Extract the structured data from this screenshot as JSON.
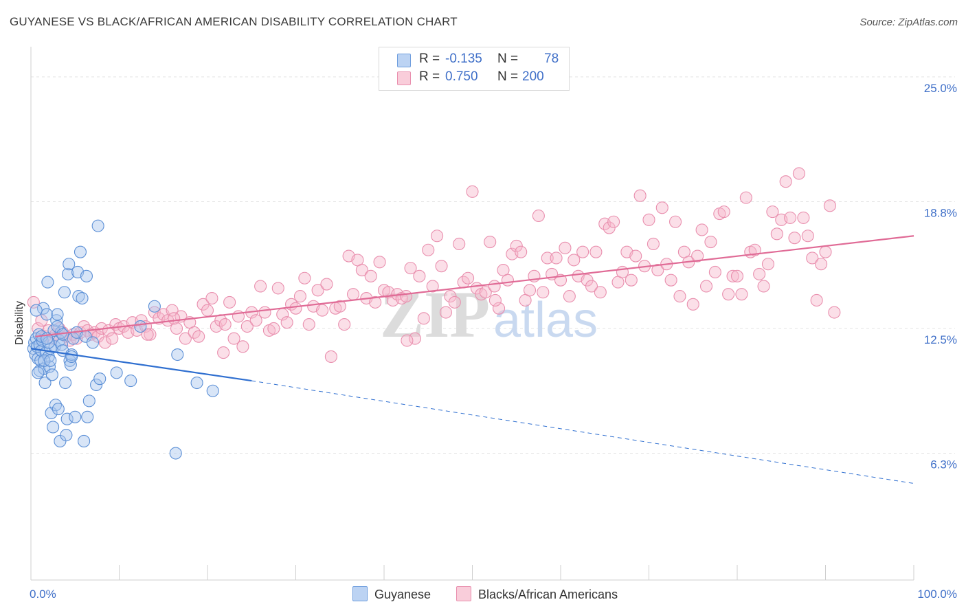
{
  "title": "GUYANESE VS BLACK/AFRICAN AMERICAN DISABILITY CORRELATION CHART",
  "source": "Source: ZipAtlas.com",
  "watermark": {
    "zip": "ZIP",
    "atlas": "atlas"
  },
  "legend_top": [
    {
      "r_label": "R =",
      "r_value": "-0.135",
      "n_label": "N =",
      "n_value": "78",
      "color": "#a9c6ee"
    },
    {
      "r_label": "R =",
      "r_value": "0.750",
      "n_label": "N =",
      "n_value": "200",
      "color": "#f6b8cb"
    }
  ],
  "legend_bottom": [
    {
      "label": "Guyanese",
      "color": "#a9c6ee"
    },
    {
      "label": "Blacks/African Americans",
      "color": "#f6b8cb"
    }
  ],
  "chart_data": {
    "type": "scatter",
    "title": "GUYANESE VS BLACK/AFRICAN AMERICAN DISABILITY CORRELATION CHART",
    "xlabel": "",
    "ylabel": "Disability",
    "xlim": [
      0,
      100
    ],
    "ylim": [
      0,
      26.5
    ],
    "y_ticks": [
      {
        "value": 6.3,
        "label": "6.3%"
      },
      {
        "value": 12.5,
        "label": "12.5%"
      },
      {
        "value": 18.8,
        "label": "18.8%"
      },
      {
        "value": 25.0,
        "label": "25.0%"
      }
    ],
    "x_tick_labels": [
      {
        "value": 0,
        "label": "0.0%"
      },
      {
        "value": 100,
        "label": "100.0%"
      }
    ],
    "x_minor_ticks": [
      0,
      10,
      20,
      30,
      40,
      50,
      60,
      70,
      80,
      90,
      100
    ],
    "grid": true,
    "series": [
      {
        "name": "Guyanese",
        "stroke": "#5b8fd6",
        "fill": "#a9c6ee",
        "line_color": "#2f6fd0",
        "trend": {
          "x0": 0,
          "y0": 11.5,
          "x1": 25,
          "y1": 9.9,
          "dash_to_x": 100,
          "dash_to_y": 4.8
        },
        "points": [
          [
            0.3,
            11.5
          ],
          [
            0.4,
            11.8
          ],
          [
            0.5,
            11.2
          ],
          [
            0.6,
            12.0
          ],
          [
            0.7,
            11.6
          ],
          [
            0.8,
            11.0
          ],
          [
            0.9,
            12.2
          ],
          [
            1.0,
            11.7
          ],
          [
            1.0,
            10.4
          ],
          [
            1.1,
            10.9
          ],
          [
            1.2,
            11.4
          ],
          [
            1.3,
            11.9
          ],
          [
            1.4,
            13.5
          ],
          [
            1.5,
            10.5
          ],
          [
            1.6,
            9.8
          ],
          [
            1.7,
            11.3
          ],
          [
            1.8,
            13.2
          ],
          [
            1.9,
            14.8
          ],
          [
            2.0,
            11.1
          ],
          [
            2.1,
            10.6
          ],
          [
            2.2,
            11.5
          ],
          [
            2.3,
            8.3
          ],
          [
            2.4,
            10.2
          ],
          [
            2.5,
            7.6
          ],
          [
            2.6,
            12.4
          ],
          [
            2.7,
            11.6
          ],
          [
            2.8,
            8.7
          ],
          [
            2.9,
            12.9
          ],
          [
            3.0,
            13.2
          ],
          [
            3.1,
            8.5
          ],
          [
            3.2,
            11.9
          ],
          [
            3.3,
            6.9
          ],
          [
            3.4,
            12.3
          ],
          [
            3.5,
            11.7
          ],
          [
            3.6,
            11.4
          ],
          [
            3.8,
            14.3
          ],
          [
            3.9,
            9.8
          ],
          [
            4.0,
            7.2
          ],
          [
            4.1,
            8.0
          ],
          [
            4.2,
            15.2
          ],
          [
            4.3,
            15.7
          ],
          [
            4.4,
            10.9
          ],
          [
            4.5,
            10.7
          ],
          [
            4.6,
            11.2
          ],
          [
            4.8,
            12.0
          ],
          [
            5.0,
            8.1
          ],
          [
            5.2,
            12.3
          ],
          [
            5.3,
            15.3
          ],
          [
            5.4,
            14.1
          ],
          [
            5.6,
            16.3
          ],
          [
            5.8,
            14.0
          ],
          [
            6.0,
            6.9
          ],
          [
            6.2,
            12.1
          ],
          [
            6.3,
            15.1
          ],
          [
            6.4,
            8.1
          ],
          [
            6.6,
            8.9
          ],
          [
            7.0,
            11.8
          ],
          [
            7.4,
            9.7
          ],
          [
            7.8,
            10.0
          ],
          [
            7.6,
            17.6
          ],
          [
            9.7,
            10.3
          ],
          [
            11.3,
            9.9
          ],
          [
            12.4,
            12.6
          ],
          [
            14.0,
            13.6
          ],
          [
            16.4,
            6.3
          ],
          [
            16.6,
            11.2
          ],
          [
            18.8,
            9.8
          ],
          [
            20.6,
            9.4
          ],
          [
            1.2,
            12.1
          ],
          [
            2.0,
            11.8
          ],
          [
            3.0,
            12.6
          ],
          [
            1.5,
            10.9
          ],
          [
            0.8,
            10.3
          ],
          [
            4.6,
            11.1
          ],
          [
            2.2,
            10.9
          ],
          [
            3.6,
            12.2
          ],
          [
            1.8,
            12.0
          ],
          [
            0.6,
            13.4
          ]
        ]
      },
      {
        "name": "Blacks/African Americans",
        "stroke": "#e98fae",
        "fill": "#f6b8cb",
        "line_color": "#e06b96",
        "trend": {
          "x0": 0.5,
          "y0": 12.1,
          "x1": 100,
          "y1": 17.1
        },
        "points": [
          [
            0.3,
            13.8
          ],
          [
            0.8,
            12.5
          ],
          [
            1.2,
            12.9
          ],
          [
            1.6,
            12.1
          ],
          [
            2.0,
            12.4
          ],
          [
            2.4,
            12.0
          ],
          [
            2.8,
            12.2
          ],
          [
            3.2,
            12.5
          ],
          [
            3.6,
            12.3
          ],
          [
            4.0,
            12.1
          ],
          [
            4.4,
            11.9
          ],
          [
            4.8,
            12.2
          ],
          [
            5.2,
            12.0
          ],
          [
            5.6,
            12.3
          ],
          [
            6.0,
            12.6
          ],
          [
            6.4,
            12.4
          ],
          [
            6.8,
            12.2
          ],
          [
            7.2,
            12.3
          ],
          [
            7.6,
            12.1
          ],
          [
            8.0,
            12.5
          ],
          [
            8.4,
            11.8
          ],
          [
            8.8,
            12.4
          ],
          [
            9.2,
            12.0
          ],
          [
            9.6,
            12.7
          ],
          [
            10.0,
            12.5
          ],
          [
            10.5,
            12.6
          ],
          [
            11.0,
            12.3
          ],
          [
            11.5,
            12.8
          ],
          [
            12.0,
            12.4
          ],
          [
            12.5,
            12.9
          ],
          [
            13.0,
            12.6
          ],
          [
            13.5,
            12.2
          ],
          [
            14.0,
            13.3
          ],
          [
            14.5,
            13.0
          ],
          [
            15.0,
            13.2
          ],
          [
            15.5,
            12.9
          ],
          [
            16.0,
            13.4
          ],
          [
            16.5,
            12.5
          ],
          [
            17.0,
            13.1
          ],
          [
            17.5,
            12.0
          ],
          [
            18.0,
            12.8
          ],
          [
            18.5,
            12.3
          ],
          [
            19.0,
            12.1
          ],
          [
            19.5,
            13.7
          ],
          [
            20.0,
            13.4
          ],
          [
            20.5,
            14.0
          ],
          [
            21.0,
            12.6
          ],
          [
            21.5,
            12.9
          ],
          [
            22.0,
            12.7
          ],
          [
            22.5,
            13.8
          ],
          [
            23.0,
            12.0
          ],
          [
            23.5,
            13.1
          ],
          [
            24.0,
            11.6
          ],
          [
            24.5,
            12.6
          ],
          [
            25.0,
            13.3
          ],
          [
            25.5,
            12.9
          ],
          [
            26.0,
            14.6
          ],
          [
            26.5,
            13.3
          ],
          [
            27.0,
            12.4
          ],
          [
            27.5,
            12.5
          ],
          [
            28.0,
            14.5
          ],
          [
            28.5,
            13.2
          ],
          [
            29.0,
            12.8
          ],
          [
            29.5,
            13.7
          ],
          [
            30.0,
            13.5
          ],
          [
            30.5,
            14.1
          ],
          [
            31.0,
            15.0
          ],
          [
            31.5,
            12.7
          ],
          [
            32.0,
            13.6
          ],
          [
            32.5,
            14.4
          ],
          [
            33.0,
            13.4
          ],
          [
            33.5,
            14.7
          ],
          [
            34.0,
            11.1
          ],
          [
            34.5,
            13.5
          ],
          [
            35.0,
            13.6
          ],
          [
            35.5,
            12.7
          ],
          [
            36.0,
            16.1
          ],
          [
            36.5,
            14.2
          ],
          [
            37.0,
            15.9
          ],
          [
            37.5,
            15.4
          ],
          [
            38.0,
            14.0
          ],
          [
            38.5,
            15.1
          ],
          [
            39.0,
            13.8
          ],
          [
            39.5,
            15.8
          ],
          [
            40.0,
            14.4
          ],
          [
            40.5,
            14.3
          ],
          [
            41.0,
            13.9
          ],
          [
            41.5,
            14.2
          ],
          [
            42.0,
            14.0
          ],
          [
            42.5,
            14.1
          ],
          [
            43.0,
            15.5
          ],
          [
            43.5,
            12.0
          ],
          [
            44.0,
            15.1
          ],
          [
            44.5,
            13.0
          ],
          [
            45.0,
            16.4
          ],
          [
            45.5,
            14.6
          ],
          [
            46.0,
            17.1
          ],
          [
            46.5,
            15.6
          ],
          [
            47.0,
            13.3
          ],
          [
            47.5,
            14.1
          ],
          [
            48.0,
            13.8
          ],
          [
            48.5,
            16.7
          ],
          [
            49.0,
            14.8
          ],
          [
            49.5,
            15.0
          ],
          [
            50.0,
            19.3
          ],
          [
            50.5,
            14.5
          ],
          [
            51.0,
            14.2
          ],
          [
            51.5,
            14.3
          ],
          [
            52.0,
            16.8
          ],
          [
            52.5,
            14.6
          ],
          [
            53.0,
            13.5
          ],
          [
            53.5,
            15.4
          ],
          [
            54.0,
            14.9
          ],
          [
            54.5,
            16.2
          ],
          [
            55.0,
            16.6
          ],
          [
            55.5,
            16.3
          ],
          [
            56.0,
            13.9
          ],
          [
            56.5,
            14.4
          ],
          [
            57.0,
            15.1
          ],
          [
            57.5,
            18.1
          ],
          [
            58.0,
            14.3
          ],
          [
            58.5,
            16.0
          ],
          [
            59.0,
            15.2
          ],
          [
            59.5,
            16.0
          ],
          [
            60.0,
            14.9
          ],
          [
            60.5,
            16.5
          ],
          [
            61.0,
            14.1
          ],
          [
            61.5,
            15.9
          ],
          [
            62.0,
            15.1
          ],
          [
            62.5,
            16.3
          ],
          [
            63.0,
            14.9
          ],
          [
            63.5,
            14.6
          ],
          [
            64.0,
            16.3
          ],
          [
            64.5,
            14.3
          ],
          [
            65.0,
            17.7
          ],
          [
            65.5,
            17.5
          ],
          [
            66.0,
            17.8
          ],
          [
            66.5,
            14.8
          ],
          [
            67.0,
            15.3
          ],
          [
            67.5,
            16.3
          ],
          [
            68.0,
            14.9
          ],
          [
            68.5,
            16.1
          ],
          [
            69.0,
            19.1
          ],
          [
            69.5,
            15.6
          ],
          [
            70.0,
            17.9
          ],
          [
            70.5,
            16.7
          ],
          [
            71.0,
            15.4
          ],
          [
            71.5,
            18.5
          ],
          [
            72.0,
            15.7
          ],
          [
            72.5,
            14.9
          ],
          [
            73.0,
            17.8
          ],
          [
            73.5,
            14.1
          ],
          [
            74.0,
            16.3
          ],
          [
            74.5,
            15.8
          ],
          [
            75.0,
            13.7
          ],
          [
            75.5,
            16.1
          ],
          [
            76.0,
            17.4
          ],
          [
            76.5,
            14.6
          ],
          [
            77.0,
            16.8
          ],
          [
            77.5,
            15.3
          ],
          [
            78.0,
            18.2
          ],
          [
            78.5,
            18.3
          ],
          [
            79.0,
            14.2
          ],
          [
            79.5,
            15.1
          ],
          [
            80.0,
            15.1
          ],
          [
            80.5,
            14.2
          ],
          [
            81.0,
            19.0
          ],
          [
            81.5,
            16.3
          ],
          [
            82.0,
            16.4
          ],
          [
            82.5,
            15.2
          ],
          [
            83.0,
            14.6
          ],
          [
            83.5,
            15.7
          ],
          [
            84.0,
            18.3
          ],
          [
            84.5,
            17.2
          ],
          [
            85.0,
            17.9
          ],
          [
            85.5,
            19.8
          ],
          [
            86.0,
            18.0
          ],
          [
            86.5,
            17.0
          ],
          [
            87.0,
            20.2
          ],
          [
            87.5,
            18.0
          ],
          [
            88.0,
            17.1
          ],
          [
            88.5,
            16.0
          ],
          [
            89.0,
            13.9
          ],
          [
            89.5,
            15.7
          ],
          [
            90.0,
            16.3
          ],
          [
            90.5,
            18.6
          ],
          [
            91.0,
            13.3
          ],
          [
            13.2,
            12.2
          ],
          [
            16.2,
            13.0
          ],
          [
            21.8,
            11.3
          ],
          [
            42.6,
            11.9
          ],
          [
            52.6,
            13.9
          ]
        ]
      }
    ]
  }
}
